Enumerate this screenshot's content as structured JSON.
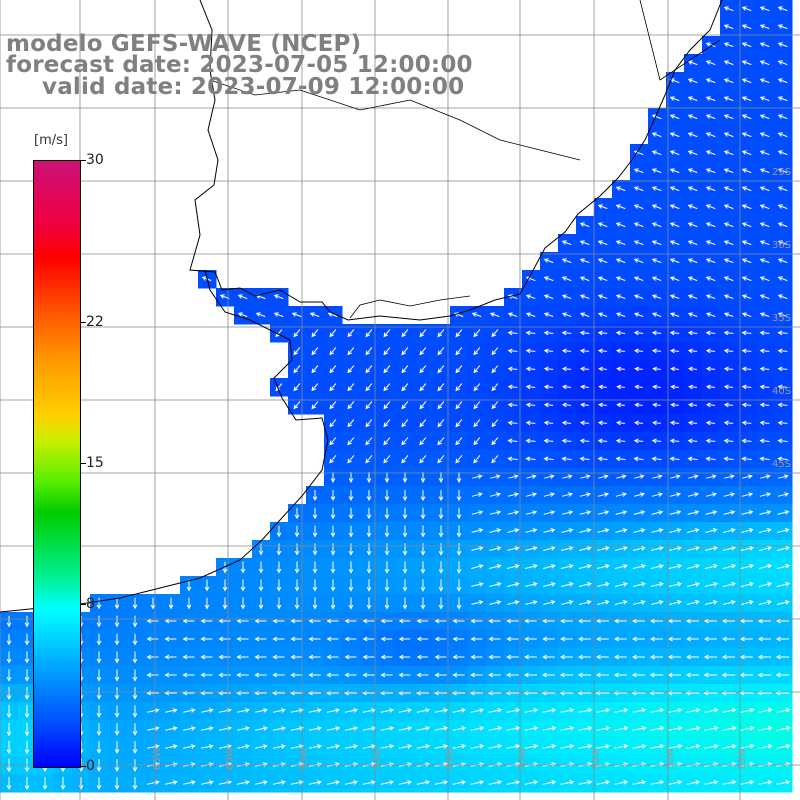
{
  "title": {
    "line1": "modelo GEFS-WAVE (NCEP)",
    "line2": "forecast date: 2023-07-05 12:00:00",
    "line3": "valid date: 2023-07-09 12:00:00"
  },
  "colorbar": {
    "unit": "[m/s]",
    "ticks": [
      {
        "label": "30",
        "value": 30
      },
      {
        "label": "22",
        "value": 22
      },
      {
        "label": "15",
        "value": 15
      },
      {
        "label": "8",
        "value": 8
      },
      {
        "label": "0",
        "value": 0
      }
    ],
    "range": [
      0,
      30
    ]
  },
  "colors": {
    "land": "#ffffff",
    "grid": "#888888",
    "coast": "#000000",
    "arrows": "#ffffff"
  },
  "map": {
    "lat_labels": [
      "25S",
      "30S",
      "35S",
      "40S",
      "45S"
    ],
    "lon_labels": [
      "65W",
      "60W",
      "55W",
      "50W",
      "45W",
      "40W",
      "35W",
      "30W",
      "25W"
    ]
  }
}
